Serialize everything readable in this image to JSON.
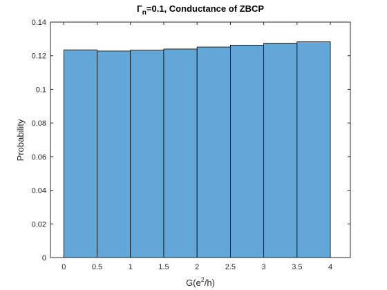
{
  "chart_data": {
    "type": "bar",
    "title": {
      "symbol": "Γ",
      "subscript": "n",
      "rest": "=0.1, Conductance of ZBCP"
    },
    "xlabel": {
      "prefix": "G(e",
      "superscript": "2",
      "suffix": "/h)"
    },
    "ylabel": "Probability",
    "bin_edges": [
      0,
      0.5,
      1,
      1.5,
      2,
      2.5,
      3,
      3.5,
      4
    ],
    "values": [
      0.1235,
      0.1228,
      0.1234,
      0.124,
      0.1252,
      0.1263,
      0.1275,
      0.1283
    ],
    "xlim": [
      -0.2,
      4.3
    ],
    "ylim": [
      0,
      0.14
    ],
    "xticks": [
      0,
      0.5,
      1,
      1.5,
      2,
      2.5,
      3,
      3.5,
      4
    ],
    "xtick_labels": [
      "0",
      "0.5",
      "1",
      "1.5",
      "2",
      "2.5",
      "3",
      "3.5",
      "4"
    ],
    "yticks": [
      0,
      0.02,
      0.04,
      0.06,
      0.08,
      0.1,
      0.12,
      0.14
    ],
    "ytick_labels": [
      "0",
      "0.02",
      "0.04",
      "0.06",
      "0.08",
      "0.1",
      "0.12",
      "0.14"
    ],
    "grid": false,
    "legend": "none",
    "bar_color": "#63a6d8",
    "edge_color": "#000000"
  }
}
